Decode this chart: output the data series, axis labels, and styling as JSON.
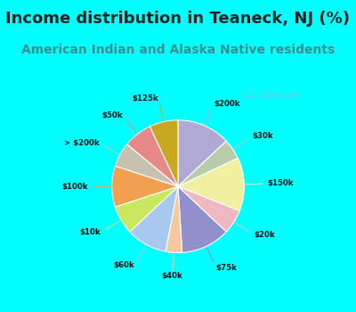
{
  "title": "Income distribution in Teaneck, NJ (%)",
  "subtitle": "American Indian and Alaska Native residents",
  "watermark": "City-Data.com",
  "background_cyan": "#00FFFF",
  "background_chart": "#e8f5ef",
  "labels": [
    "$200k",
    "$30k",
    "$150k",
    "$20k",
    "$75k",
    "$40k",
    "$60k",
    "$10k",
    "$100k",
    "> $200k",
    "$50k",
    "$125k"
  ],
  "values": [
    13,
    5,
    13,
    6,
    12,
    4,
    10,
    7,
    10,
    6,
    7,
    7
  ],
  "colors": [
    "#b0a8d5",
    "#b8ccaa",
    "#f0f0a0",
    "#f0b8c0",
    "#9090cc",
    "#f5c8a0",
    "#a8c8f0",
    "#c8e860",
    "#f0a050",
    "#c8c0b0",
    "#e88888",
    "#c8a820"
  ],
  "title_fontsize": 13,
  "subtitle_fontsize": 10,
  "title_color": "#222222",
  "subtitle_color": "#3a9090"
}
